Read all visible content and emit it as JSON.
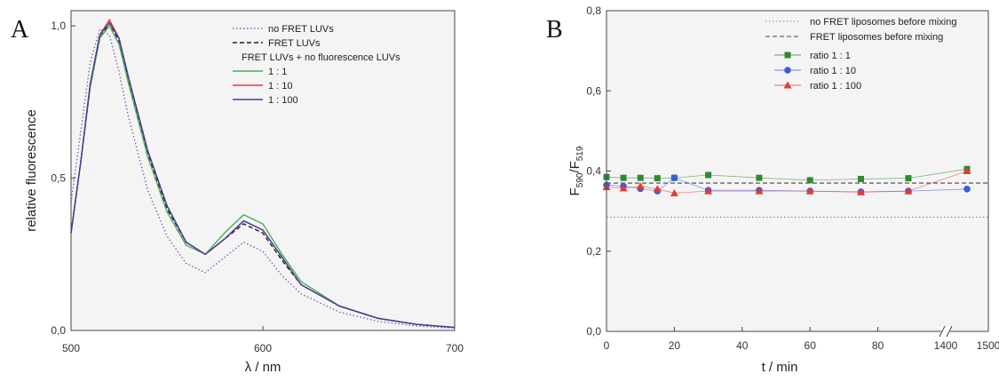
{
  "chart_data": [
    {
      "type": "line",
      "panel_label": "A",
      "xlabel": "λ / nm",
      "ylabel": "relative fluorescence",
      "xlim": [
        500,
        700
      ],
      "ylim": [
        0,
        1.05
      ],
      "x_ticks": [
        "500",
        "600",
        "700"
      ],
      "y_ticks": [
        "0,0",
        "0,5",
        "1,0"
      ],
      "legend_header": "FRET LUVs + no fluorescence LUVs",
      "legend_position": "top-right",
      "series": [
        {
          "name": "no FRET LUVs",
          "color": "#6a6ab8",
          "style": "dotted",
          "x": [
            500,
            505,
            510,
            515,
            520,
            525,
            530,
            540,
            550,
            560,
            570,
            580,
            590,
            600,
            610,
            620,
            640,
            660,
            680,
            700
          ],
          "y": [
            0.42,
            0.65,
            0.88,
            0.99,
            0.97,
            0.85,
            0.7,
            0.46,
            0.31,
            0.22,
            0.19,
            0.24,
            0.29,
            0.26,
            0.18,
            0.12,
            0.06,
            0.03,
            0.015,
            0.008
          ]
        },
        {
          "name": "FRET LUVs",
          "color": "#222222",
          "style": "dashed",
          "x": [
            500,
            505,
            510,
            515,
            520,
            525,
            530,
            540,
            550,
            560,
            570,
            580,
            590,
            600,
            610,
            620,
            640,
            660,
            680,
            700
          ],
          "y": [
            0.32,
            0.55,
            0.8,
            0.96,
            1.01,
            0.95,
            0.82,
            0.58,
            0.4,
            0.29,
            0.25,
            0.3,
            0.35,
            0.32,
            0.23,
            0.15,
            0.08,
            0.04,
            0.02,
            0.01
          ]
        },
        {
          "name": "1 : 1",
          "color": "#4caf50",
          "style": "solid",
          "x": [
            500,
            505,
            510,
            515,
            520,
            525,
            530,
            540,
            550,
            560,
            570,
            580,
            590,
            600,
            610,
            620,
            640,
            660,
            680,
            700
          ],
          "y": [
            0.32,
            0.55,
            0.8,
            0.96,
            1.0,
            0.94,
            0.81,
            0.57,
            0.39,
            0.28,
            0.25,
            0.32,
            0.38,
            0.35,
            0.25,
            0.16,
            0.08,
            0.04,
            0.02,
            0.01
          ]
        },
        {
          "name": "1 : 10",
          "color": "#e53935",
          "style": "solid",
          "x": [
            500,
            505,
            510,
            515,
            520,
            525,
            530,
            540,
            550,
            560,
            570,
            580,
            590,
            600,
            610,
            620,
            640,
            660,
            680,
            700
          ],
          "y": [
            0.32,
            0.55,
            0.81,
            0.97,
            1.02,
            0.96,
            0.83,
            0.59,
            0.41,
            0.29,
            0.25,
            0.3,
            0.36,
            0.33,
            0.24,
            0.15,
            0.08,
            0.04,
            0.02,
            0.01
          ]
        },
        {
          "name": "1 : 100",
          "color": "#3f3fa0",
          "style": "solid",
          "x": [
            500,
            505,
            510,
            515,
            520,
            525,
            530,
            540,
            550,
            560,
            570,
            580,
            590,
            600,
            610,
            620,
            640,
            660,
            680,
            700
          ],
          "y": [
            0.32,
            0.55,
            0.81,
            0.97,
            1.01,
            0.96,
            0.83,
            0.59,
            0.41,
            0.29,
            0.25,
            0.3,
            0.36,
            0.33,
            0.24,
            0.15,
            0.08,
            0.04,
            0.02,
            0.01
          ]
        }
      ]
    },
    {
      "type": "line",
      "panel_label": "B",
      "xlabel": "t / min",
      "ylabel": "F590/F519",
      "ylabel_parts": {
        "main1": "F",
        "sub1": "590",
        "main2": "/F",
        "sub2": "519"
      },
      "xlim": [
        0,
        1500
      ],
      "ylim": [
        0,
        0.8
      ],
      "axis_break": [
        90,
        1400
      ],
      "x_ticks": [
        "0",
        "20",
        "40",
        "60",
        "80",
        "1400",
        "1500"
      ],
      "y_ticks": [
        "0,0",
        "0,2",
        "0,4",
        "0,6",
        "0,8"
      ],
      "legend_position": "top-right",
      "reference_lines": [
        {
          "name": "no FRET liposomes before mixing",
          "y": 0.285,
          "color": "#888888",
          "style": "dotted"
        },
        {
          "name": "FRET liposomes before mixing",
          "y": 0.37,
          "color": "#444444",
          "style": "dashed"
        }
      ],
      "series": [
        {
          "name": "ratio 1 : 1",
          "color": "#2e8b2e",
          "marker": "square",
          "x": [
            0,
            5,
            10,
            15,
            20,
            30,
            45,
            60,
            75,
            89,
            1450
          ],
          "y": [
            0.385,
            0.383,
            0.383,
            0.382,
            0.383,
            0.39,
            0.383,
            0.377,
            0.38,
            0.382,
            0.405
          ]
        },
        {
          "name": "ratio 1 : 10",
          "color": "#3a5fd9",
          "marker": "circle",
          "x": [
            0,
            5,
            10,
            15,
            20,
            30,
            45,
            60,
            75,
            89,
            1450
          ],
          "y": [
            0.365,
            0.362,
            0.356,
            0.35,
            0.383,
            0.352,
            0.352,
            0.35,
            0.348,
            0.35,
            0.355
          ]
        },
        {
          "name": "ratio 1 : 100",
          "color": "#e53935",
          "marker": "triangle",
          "x": [
            0,
            5,
            10,
            15,
            20,
            30,
            45,
            60,
            75,
            89,
            1450
          ],
          "y": [
            0.36,
            0.357,
            0.362,
            0.355,
            0.345,
            0.35,
            0.35,
            0.35,
            0.347,
            0.35,
            0.4
          ]
        }
      ]
    }
  ]
}
